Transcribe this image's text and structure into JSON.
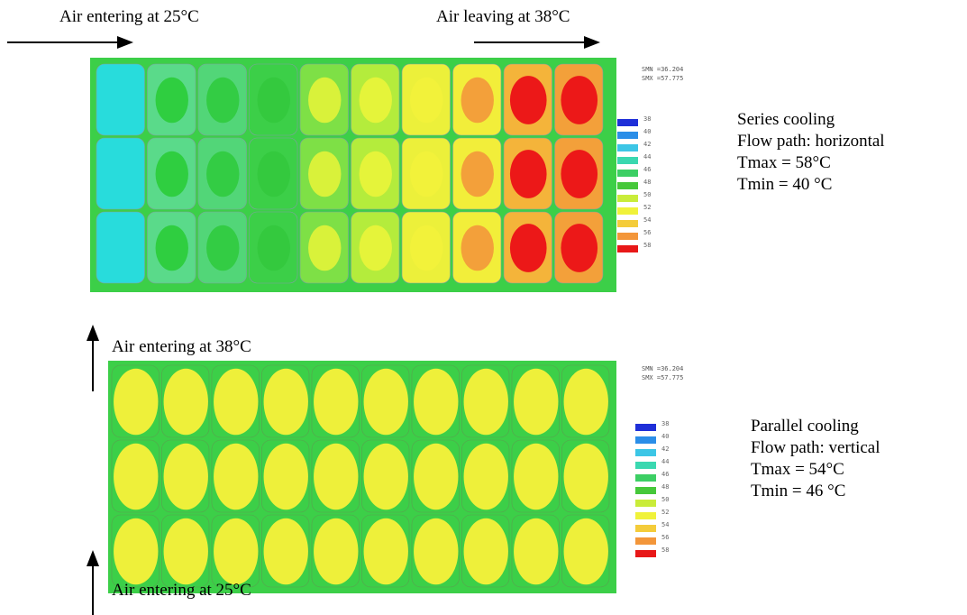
{
  "top": {
    "inlet_label": "Air entering at 25°C",
    "outlet_label": "Air leaving at 38°C",
    "minmax": [
      "SMN =36.204",
      "SMX =57.775"
    ],
    "info": {
      "title": "Series cooling",
      "flow": "Flow path: horizontal",
      "tmax": "Tmax = 58°C",
      "tmin": "Tmin = 40 °C"
    },
    "columns": [
      {
        "outer": "#28dcdc",
        "inner": "#28dcdc"
      },
      {
        "outer": "#5ada8a",
        "inner": "#2fce40"
      },
      {
        "outer": "#52d678",
        "inner": "#33cc44"
      },
      {
        "outer": "#3ccf48",
        "inner": "#34c93e"
      },
      {
        "outer": "#7ee046",
        "inner": "#d9f23a"
      },
      {
        "outer": "#b4ec3c",
        "inner": "#e5f43a"
      },
      {
        "outer": "#ecf03a",
        "inner": "#f2f23a"
      },
      {
        "outer": "#f2ee3a",
        "inner": "#f3a03a"
      },
      {
        "outer": "#f4b43a",
        "inner": "#ec1818"
      },
      {
        "outer": "#f3a03a",
        "inner": "#ec1818"
      }
    ]
  },
  "bottom": {
    "top_label": "Air entering at 38°C",
    "bottom_label": "Air entering at 25°C",
    "minmax": [
      "SMN =36.204",
      "SMX =57.775"
    ],
    "info": {
      "title": "Parallel cooling",
      "flow": "Flow path: vertical",
      "tmax": "Tmax = 54°C",
      "tmin": "Tmin = 46 °C"
    },
    "cell_outer": "#3ccf48",
    "cell_inner": "#eef03a"
  },
  "legend": {
    "ticks": [
      "38",
      "40",
      "42",
      "44",
      "46",
      "48",
      "50",
      "52",
      "54",
      "56",
      "58"
    ],
    "colors": [
      "#1f2fd8",
      "#2b8ee8",
      "#3cc6e6",
      "#3ad8b0",
      "#3ccf64",
      "#46c83a",
      "#c9ec3a",
      "#f0f23a",
      "#f4cc3a",
      "#f3963a",
      "#e81818"
    ]
  }
}
